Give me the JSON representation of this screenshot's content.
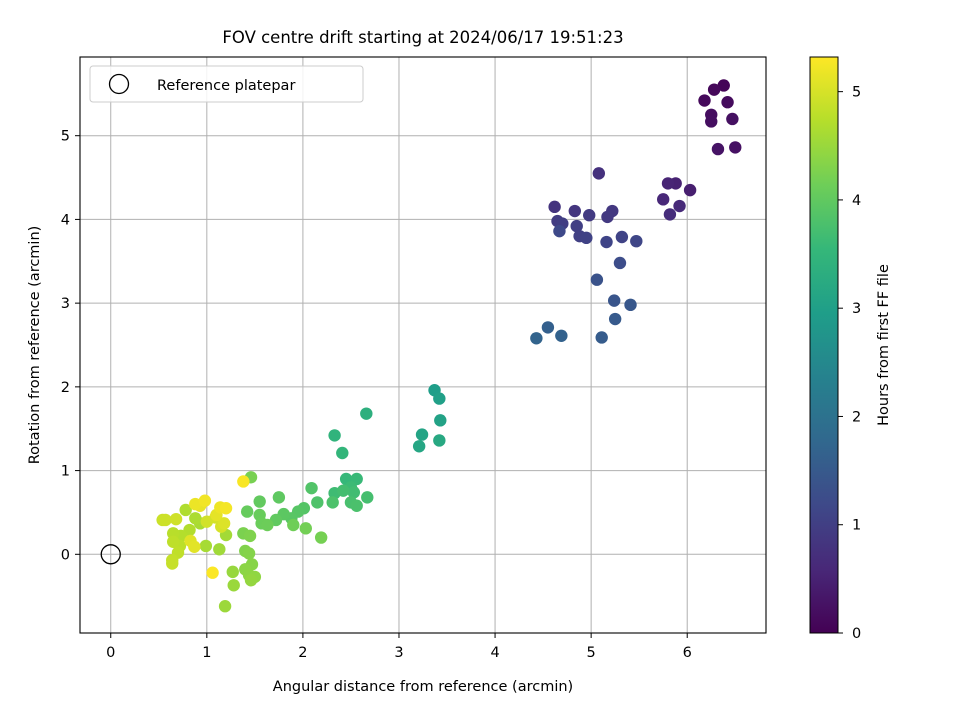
{
  "chart_data": {
    "type": "scatter",
    "title": "FOV centre drift starting at 2024/06/17 19:51:23",
    "xlabel": "Angular distance from reference (arcmin)",
    "ylabel": "Rotation from reference (arcmin)",
    "xlim": [
      -0.32,
      6.82
    ],
    "ylim": [
      -0.94,
      5.94
    ],
    "xticks": [
      0,
      1,
      2,
      3,
      4,
      5,
      6
    ],
    "yticks": [
      0,
      1,
      2,
      3,
      4,
      5
    ],
    "grid": true,
    "legend": {
      "placement": "top-left",
      "entries": [
        "Reference platepar"
      ]
    },
    "reference_point": {
      "x": 0,
      "y": 0
    },
    "colorbar": {
      "label": "Hours from first FF file",
      "range": [
        0,
        5.32
      ],
      "ticks": [
        0,
        1,
        2,
        3,
        4,
        5
      ],
      "colormap": "viridis",
      "stops": [
        "#440154",
        "#482878",
        "#3e4989",
        "#31688e",
        "#26828e",
        "#1f9e89",
        "#35b779",
        "#6ece58",
        "#b5de2b",
        "#fde725"
      ]
    },
    "series": [
      {
        "points": [
          [
            6.38,
            5.6,
            0.05
          ],
          [
            6.28,
            5.55,
            0.1
          ],
          [
            6.18,
            5.42,
            0.12
          ],
          [
            6.42,
            5.4,
            0.15
          ],
          [
            6.25,
            5.25,
            0.18
          ],
          [
            6.25,
            5.17,
            0.2
          ],
          [
            6.47,
            5.2,
            0.22
          ],
          [
            6.5,
            4.86,
            0.25
          ],
          [
            6.32,
            4.84,
            0.28
          ],
          [
            6.03,
            4.35,
            0.45
          ],
          [
            5.88,
            4.43,
            0.5
          ],
          [
            5.8,
            4.43,
            0.55
          ],
          [
            5.75,
            4.24,
            0.6
          ],
          [
            5.92,
            4.16,
            0.63
          ],
          [
            5.82,
            4.06,
            0.68
          ],
          [
            5.08,
            4.55,
            0.75
          ],
          [
            4.62,
            4.15,
            0.8
          ],
          [
            4.83,
            4.1,
            0.85
          ],
          [
            5.22,
            4.1,
            0.88
          ],
          [
            5.17,
            4.03,
            0.9
          ],
          [
            4.98,
            4.05,
            0.92
          ],
          [
            4.65,
            3.98,
            0.95
          ],
          [
            4.7,
            3.95,
            0.98
          ],
          [
            4.85,
            3.92,
            1.0
          ],
          [
            4.88,
            3.8,
            1.02
          ],
          [
            4.95,
            3.78,
            1.05
          ],
          [
            5.32,
            3.79,
            1.08
          ],
          [
            5.16,
            3.73,
            1.1
          ],
          [
            5.47,
            3.74,
            1.13
          ],
          [
            4.67,
            3.86,
            1.18
          ],
          [
            5.3,
            3.48,
            1.25
          ],
          [
            5.06,
            3.28,
            1.35
          ],
          [
            5.24,
            3.03,
            1.42
          ],
          [
            5.41,
            2.98,
            1.45
          ],
          [
            5.25,
            2.81,
            1.5
          ],
          [
            5.11,
            2.59,
            1.55
          ],
          [
            4.55,
            2.71,
            1.62
          ],
          [
            4.69,
            2.61,
            1.66
          ],
          [
            4.43,
            2.58,
            1.7
          ],
          [
            3.37,
            1.96,
            2.95
          ],
          [
            3.42,
            1.86,
            3.0
          ],
          [
            3.43,
            1.6,
            3.05
          ],
          [
            3.24,
            1.43,
            3.1
          ],
          [
            3.21,
            1.29,
            3.15
          ],
          [
            3.42,
            1.36,
            3.2
          ],
          [
            2.66,
            1.68,
            3.35
          ],
          [
            2.33,
            1.42,
            3.45
          ],
          [
            2.41,
            1.21,
            3.5
          ],
          [
            2.45,
            0.9,
            3.55
          ],
          [
            2.56,
            0.9,
            3.58
          ],
          [
            2.5,
            0.8,
            3.62
          ],
          [
            2.33,
            0.73,
            3.65
          ],
          [
            2.53,
            0.74,
            3.68
          ],
          [
            2.42,
            0.76,
            3.7
          ],
          [
            2.67,
            0.68,
            3.72
          ],
          [
            2.5,
            0.62,
            3.75
          ],
          [
            2.56,
            0.58,
            3.78
          ],
          [
            2.31,
            0.62,
            3.8
          ],
          [
            2.15,
            0.62,
            3.82
          ],
          [
            2.09,
            0.79,
            3.85
          ],
          [
            2.01,
            0.55,
            3.88
          ],
          [
            1.95,
            0.51,
            3.9
          ],
          [
            1.88,
            0.43,
            3.92
          ],
          [
            1.8,
            0.48,
            3.95
          ],
          [
            1.75,
            0.68,
            3.98
          ],
          [
            1.72,
            0.41,
            4.0
          ],
          [
            1.55,
            0.63,
            4.02
          ],
          [
            1.42,
            0.51,
            4.05
          ],
          [
            1.55,
            0.47,
            4.08
          ],
          [
            1.57,
            0.37,
            4.1
          ],
          [
            1.63,
            0.35,
            4.12
          ],
          [
            1.9,
            0.35,
            4.15
          ],
          [
            2.03,
            0.31,
            4.18
          ],
          [
            2.19,
            0.2,
            4.2
          ],
          [
            1.46,
            0.92,
            4.22
          ],
          [
            1.38,
            0.25,
            4.25
          ],
          [
            1.45,
            0.22,
            4.28
          ],
          [
            1.4,
            0.04,
            4.3
          ],
          [
            1.44,
            0.01,
            4.32
          ],
          [
            1.47,
            -0.12,
            4.35
          ],
          [
            1.4,
            -0.18,
            4.38
          ],
          [
            1.44,
            -0.25,
            4.4
          ],
          [
            1.5,
            -0.27,
            4.42
          ],
          [
            1.46,
            -0.31,
            4.45
          ],
          [
            1.27,
            -0.21,
            4.48
          ],
          [
            1.28,
            -0.37,
            4.5
          ],
          [
            1.19,
            -0.62,
            4.52
          ],
          [
            1.13,
            0.06,
            4.55
          ],
          [
            1.2,
            0.23,
            4.58
          ],
          [
            0.99,
            0.1,
            4.6
          ],
          [
            0.93,
            0.37,
            4.62
          ],
          [
            0.88,
            0.43,
            4.65
          ],
          [
            0.78,
            0.53,
            4.68
          ],
          [
            0.82,
            0.29,
            4.7
          ],
          [
            0.73,
            0.22,
            4.72
          ],
          [
            0.65,
            0.25,
            4.75
          ],
          [
            0.72,
            0.1,
            4.78
          ],
          [
            0.65,
            0.15,
            4.8
          ],
          [
            0.7,
            0.02,
            4.82
          ],
          [
            0.64,
            -0.07,
            4.85
          ],
          [
            0.64,
            -0.11,
            4.87
          ],
          [
            0.54,
            0.41,
            4.9
          ],
          [
            0.57,
            0.41,
            4.92
          ],
          [
            0.68,
            0.42,
            4.94
          ],
          [
            1.0,
            0.39,
            4.96
          ],
          [
            1.09,
            0.44,
            4.98
          ],
          [
            1.15,
            0.33,
            5.0
          ],
          [
            1.18,
            0.37,
            5.05
          ],
          [
            0.83,
            0.16,
            5.08
          ],
          [
            0.87,
            0.09,
            5.1
          ],
          [
            1.1,
            0.47,
            5.12
          ],
          [
            0.93,
            0.58,
            5.15
          ],
          [
            0.88,
            0.6,
            5.18
          ],
          [
            1.14,
            0.56,
            5.2
          ],
          [
            0.98,
            0.64,
            5.22
          ],
          [
            1.2,
            0.55,
            5.25
          ],
          [
            1.38,
            0.87,
            5.28
          ],
          [
            1.06,
            -0.22,
            5.3
          ]
        ]
      }
    ]
  }
}
